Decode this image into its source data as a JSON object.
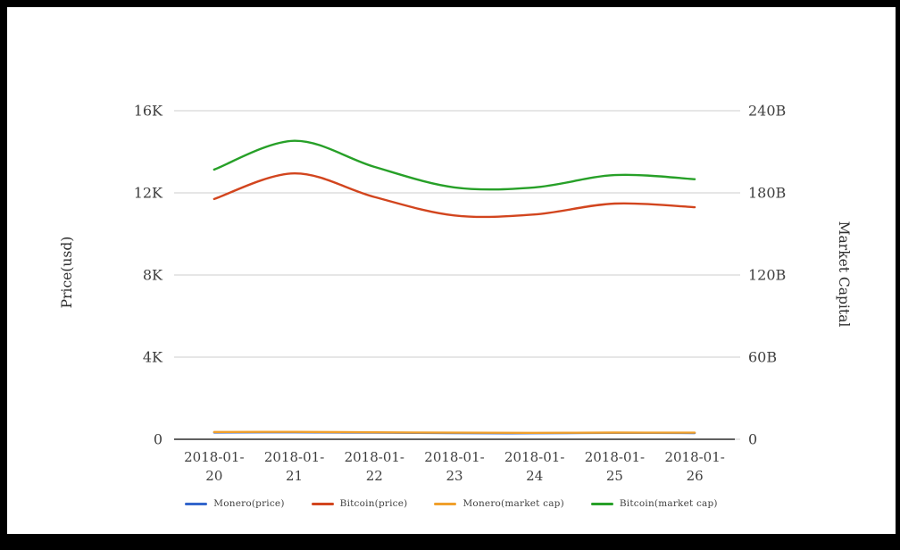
{
  "frame": {
    "background": "#ffffff",
    "border_color": "#000000"
  },
  "styles": {
    "grid_line": "#cccccc",
    "axis_line": "#4a4a4a",
    "tick_color": "#3f3f3f",
    "axis_name_color": "#2f2f2f",
    "legend_text": "#424242",
    "series_colors": {
      "monero_price": "#3366cc",
      "bitcoin_price": "#d2451e",
      "monero_market_cap": "#f0a02c",
      "bitcoin_market_cap": "#27a028"
    }
  },
  "chart_data": {
    "type": "line",
    "title": "",
    "xlabel": "",
    "smooth": true,
    "grid": true,
    "categories": [
      "2018-01-20",
      "2018-01-21",
      "2018-01-22",
      "2018-01-23",
      "2018-01-24",
      "2018-01-25",
      "2018-01-26"
    ],
    "series": [
      {
        "name": "Monero(price)",
        "axis": "left",
        "color": "#3366cc",
        "values": [
          330,
          341,
          322,
          300,
          295,
          312,
          305
        ]
      },
      {
        "name": "Bitcoin(price)",
        "axis": "left",
        "color": "#d2451e",
        "values": [
          11700,
          12950,
          11800,
          10900,
          10950,
          11480,
          11300
        ]
      },
      {
        "name": "Monero(market cap)",
        "axis": "right",
        "color": "#f0a02c",
        "values": [
          5.3,
          5.4,
          5.1,
          4.8,
          4.7,
          4.9,
          4.8
        ]
      },
      {
        "name": "Bitcoin(market cap)",
        "axis": "right",
        "color": "#27a028",
        "values": [
          197,
          218,
          199,
          184,
          184,
          193,
          190
        ]
      }
    ],
    "axes": {
      "left": {
        "label": "Price(usd)",
        "min": 0,
        "max": 16000,
        "unit": "USD",
        "ticks": [
          "0",
          "4K",
          "8K",
          "12K",
          "16K"
        ],
        "tick_values": [
          0,
          4000,
          8000,
          12000,
          16000
        ]
      },
      "right": {
        "label": "Market Capital",
        "min": 0,
        "max": 240,
        "unit": "billions",
        "ticks": [
          "0",
          "60B",
          "120B",
          "180B",
          "240B"
        ],
        "tick_values": [
          0,
          60,
          120,
          180,
          240
        ]
      }
    },
    "legend": {
      "position": "bottom",
      "entries": [
        "Monero(price)",
        "Bitcoin(price)",
        "Monero(market cap)",
        "Bitcoin(market cap)"
      ]
    }
  }
}
